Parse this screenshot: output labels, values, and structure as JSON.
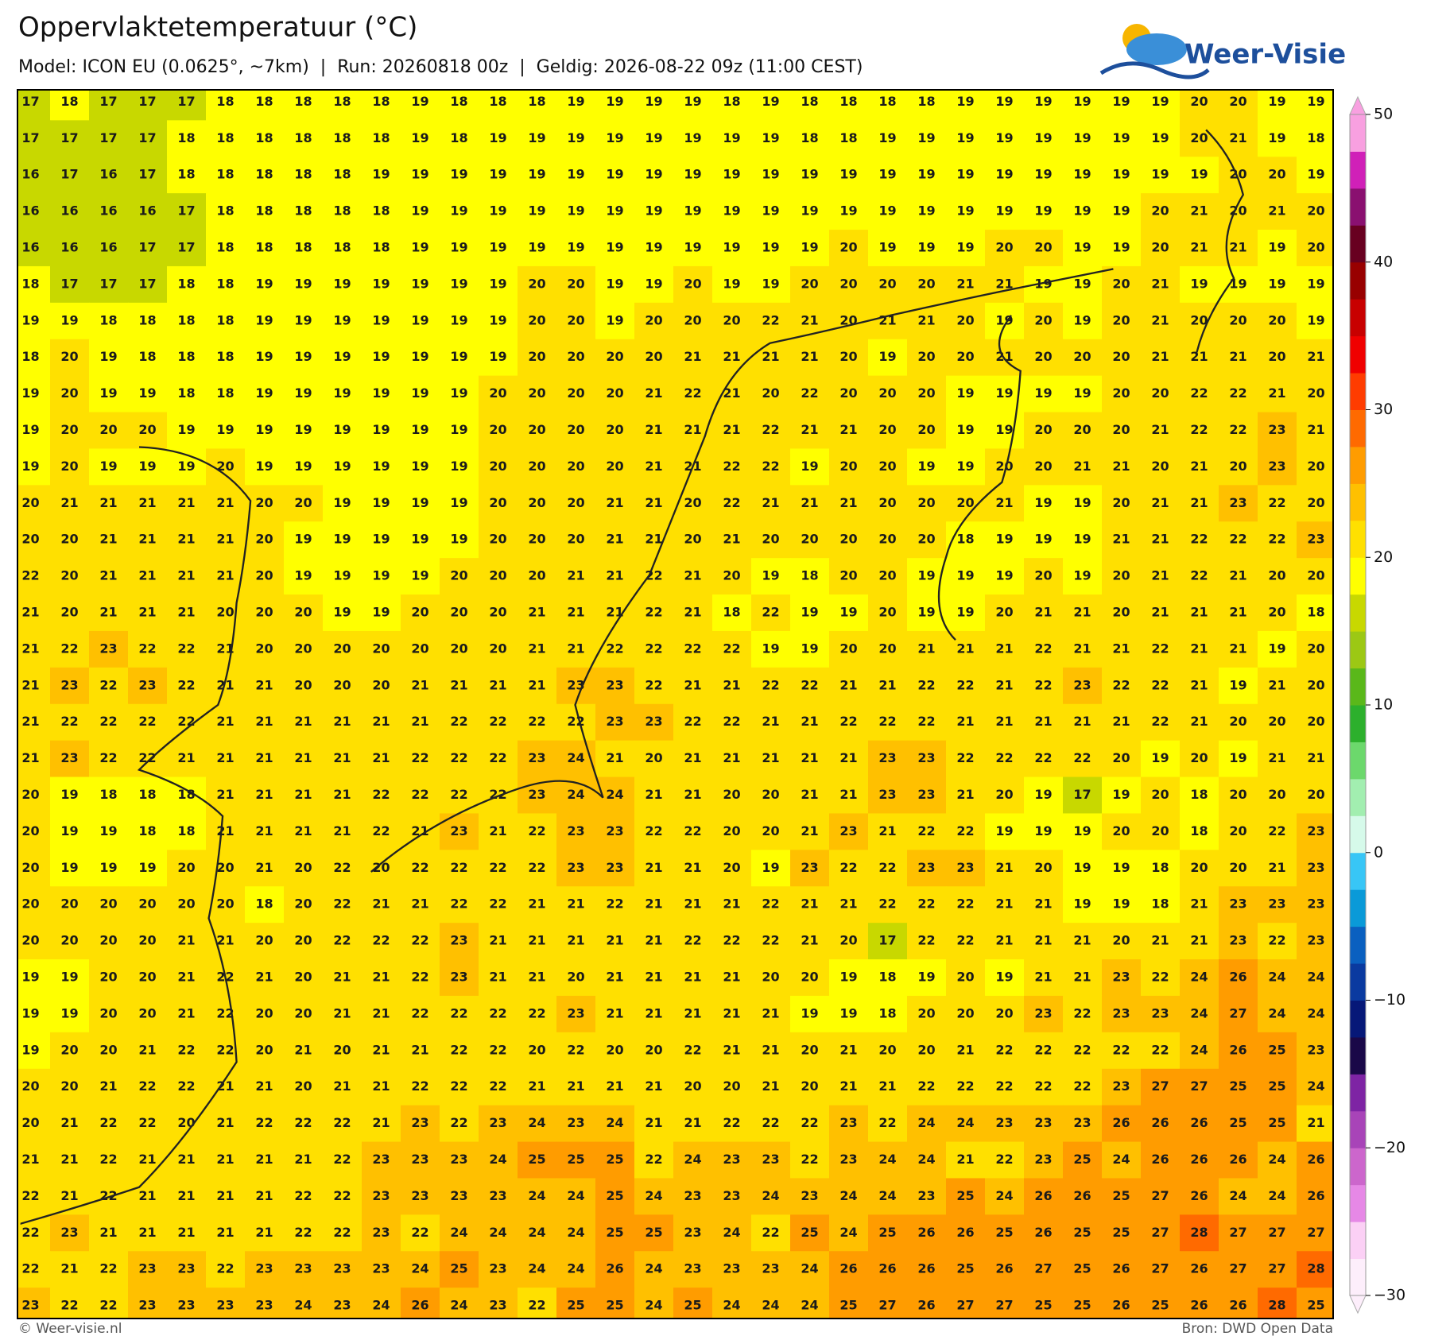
{
  "header": {
    "title": "Oppervlaktetemperatuur (°C)",
    "subtitle": "Model: ICON EU (0.0625°, ~7km)  |  Run: 20260818 00z  |  Geldig: 2026-08-22 09z (11:00 CEST)",
    "logo": "Weer-Visie"
  },
  "map": {
    "values": [
      [
        17,
        18,
        17,
        17,
        17,
        18,
        18,
        18,
        18,
        18,
        19,
        18,
        18,
        18,
        19,
        19,
        19,
        19,
        18,
        19,
        18,
        18,
        18,
        18,
        19,
        19,
        19,
        19,
        19,
        19,
        20,
        20,
        19,
        19
      ],
      [
        17,
        17,
        17,
        17,
        18,
        18,
        18,
        18,
        18,
        18,
        19,
        18,
        19,
        19,
        19,
        19,
        19,
        19,
        19,
        19,
        18,
        18,
        19,
        19,
        19,
        19,
        19,
        19,
        19,
        19,
        20,
        21,
        19,
        18
      ],
      [
        16,
        17,
        16,
        17,
        18,
        18,
        18,
        18,
        18,
        19,
        19,
        19,
        19,
        19,
        19,
        19,
        19,
        19,
        19,
        19,
        19,
        19,
        19,
        19,
        19,
        19,
        19,
        19,
        19,
        19,
        19,
        20,
        20,
        19
      ],
      [
        16,
        16,
        16,
        16,
        17,
        18,
        18,
        18,
        18,
        18,
        19,
        19,
        19,
        19,
        19,
        19,
        19,
        19,
        19,
        19,
        19,
        19,
        19,
        19,
        19,
        19,
        19,
        19,
        19,
        20,
        21,
        20,
        21,
        20
      ],
      [
        16,
        16,
        16,
        17,
        17,
        18,
        18,
        18,
        18,
        18,
        19,
        19,
        19,
        19,
        19,
        19,
        19,
        19,
        19,
        19,
        19,
        20,
        19,
        19,
        19,
        20,
        20,
        19,
        19,
        20,
        21,
        21,
        19,
        20
      ],
      [
        18,
        17,
        17,
        17,
        18,
        18,
        19,
        19,
        19,
        19,
        19,
        19,
        19,
        20,
        20,
        19,
        19,
        20,
        19,
        19,
        20,
        20,
        20,
        20,
        21,
        21,
        19,
        19,
        20,
        21,
        19,
        19,
        19,
        19
      ],
      [
        19,
        19,
        18,
        18,
        18,
        18,
        19,
        19,
        19,
        19,
        19,
        19,
        19,
        20,
        20,
        19,
        20,
        20,
        20,
        22,
        21,
        20,
        21,
        21,
        20,
        19,
        20,
        19,
        20,
        21,
        20,
        20,
        20,
        19
      ],
      [
        18,
        20,
        19,
        18,
        18,
        18,
        19,
        19,
        19,
        19,
        19,
        19,
        19,
        20,
        20,
        20,
        20,
        21,
        21,
        21,
        21,
        20,
        19,
        20,
        20,
        21,
        20,
        20,
        20,
        21,
        21,
        21,
        20,
        21
      ],
      [
        19,
        20,
        19,
        19,
        18,
        18,
        19,
        19,
        19,
        19,
        19,
        19,
        20,
        20,
        20,
        20,
        21,
        22,
        21,
        20,
        22,
        20,
        20,
        20,
        19,
        19,
        19,
        19,
        20,
        20,
        22,
        22,
        21,
        20
      ],
      [
        19,
        20,
        20,
        20,
        19,
        19,
        19,
        19,
        19,
        19,
        19,
        19,
        20,
        20,
        20,
        20,
        21,
        21,
        21,
        22,
        21,
        21,
        20,
        20,
        19,
        19,
        20,
        20,
        20,
        21,
        22,
        22,
        23,
        21
      ],
      [
        19,
        20,
        19,
        19,
        19,
        20,
        19,
        19,
        19,
        19,
        19,
        19,
        20,
        20,
        20,
        20,
        21,
        21,
        22,
        22,
        19,
        20,
        20,
        19,
        19,
        20,
        20,
        21,
        21,
        20,
        21,
        20,
        23,
        20
      ],
      [
        20,
        21,
        21,
        21,
        21,
        21,
        20,
        20,
        19,
        19,
        19,
        19,
        20,
        20,
        20,
        21,
        21,
        20,
        22,
        21,
        21,
        21,
        20,
        20,
        20,
        21,
        19,
        19,
        20,
        21,
        21,
        23,
        22,
        20
      ],
      [
        20,
        20,
        21,
        21,
        21,
        21,
        20,
        19,
        19,
        19,
        19,
        19,
        20,
        20,
        20,
        21,
        21,
        20,
        21,
        20,
        20,
        20,
        20,
        20,
        18,
        19,
        19,
        19,
        21,
        21,
        22,
        22,
        22,
        23
      ],
      [
        22,
        20,
        21,
        21,
        21,
        21,
        20,
        19,
        19,
        19,
        19,
        20,
        20,
        20,
        21,
        21,
        22,
        21,
        20,
        19,
        18,
        20,
        20,
        19,
        19,
        19,
        20,
        19,
        20,
        21,
        22,
        21,
        20,
        20
      ],
      [
        21,
        20,
        21,
        21,
        21,
        20,
        20,
        20,
        19,
        19,
        20,
        20,
        20,
        21,
        21,
        21,
        22,
        21,
        18,
        22,
        19,
        19,
        20,
        19,
        19,
        20,
        21,
        21,
        20,
        21,
        21,
        21,
        20,
        18
      ],
      [
        21,
        22,
        23,
        22,
        22,
        21,
        20,
        20,
        20,
        20,
        20,
        20,
        20,
        21,
        21,
        22,
        22,
        22,
        22,
        19,
        19,
        20,
        20,
        21,
        21,
        21,
        22,
        21,
        21,
        22,
        21,
        21,
        19,
        20
      ],
      [
        21,
        23,
        22,
        23,
        22,
        21,
        21,
        20,
        20,
        20,
        21,
        21,
        21,
        21,
        23,
        23,
        22,
        21,
        21,
        22,
        22,
        21,
        21,
        22,
        22,
        21,
        22,
        23,
        22,
        22,
        21,
        19,
        21,
        20
      ],
      [
        21,
        22,
        22,
        22,
        22,
        21,
        21,
        21,
        21,
        21,
        21,
        22,
        22,
        22,
        22,
        23,
        23,
        22,
        22,
        21,
        21,
        22,
        22,
        22,
        21,
        21,
        21,
        21,
        21,
        22,
        21,
        20,
        20,
        20
      ],
      [
        21,
        23,
        22,
        22,
        21,
        21,
        21,
        21,
        21,
        21,
        22,
        22,
        22,
        23,
        24,
        21,
        20,
        21,
        21,
        21,
        21,
        21,
        23,
        23,
        22,
        22,
        22,
        22,
        20,
        19,
        20,
        19,
        21,
        21
      ],
      [
        20,
        19,
        18,
        18,
        18,
        21,
        21,
        21,
        21,
        22,
        22,
        22,
        22,
        23,
        24,
        24,
        21,
        21,
        20,
        20,
        21,
        21,
        23,
        23,
        21,
        20,
        19,
        17,
        19,
        20,
        18,
        20,
        20,
        20
      ],
      [
        20,
        19,
        19,
        18,
        18,
        21,
        21,
        21,
        21,
        22,
        21,
        23,
        21,
        22,
        23,
        23,
        22,
        22,
        20,
        20,
        21,
        23,
        21,
        22,
        22,
        19,
        19,
        19,
        20,
        20,
        18,
        20,
        22,
        23
      ],
      [
        20,
        19,
        19,
        19,
        20,
        20,
        21,
        20,
        22,
        20,
        22,
        22,
        22,
        22,
        23,
        23,
        21,
        21,
        20,
        19,
        23,
        22,
        22,
        23,
        23,
        21,
        20,
        19,
        19,
        18,
        20,
        20,
        21,
        23
      ],
      [
        20,
        20,
        20,
        20,
        20,
        20,
        18,
        20,
        22,
        21,
        21,
        22,
        22,
        21,
        21,
        22,
        21,
        21,
        21,
        22,
        21,
        21,
        22,
        22,
        22,
        21,
        21,
        19,
        19,
        18,
        21,
        23,
        23,
        23
      ],
      [
        20,
        20,
        20,
        20,
        21,
        21,
        20,
        20,
        22,
        22,
        22,
        23,
        21,
        21,
        21,
        21,
        21,
        22,
        22,
        22,
        21,
        20,
        17,
        22,
        22,
        21,
        21,
        21,
        20,
        21,
        21,
        23,
        22,
        23
      ],
      [
        19,
        19,
        20,
        20,
        21,
        22,
        21,
        20,
        21,
        21,
        22,
        23,
        21,
        21,
        20,
        21,
        21,
        21,
        21,
        20,
        20,
        19,
        18,
        19,
        20,
        19,
        21,
        21,
        23,
        22,
        24,
        26,
        24,
        24
      ],
      [
        19,
        19,
        20,
        20,
        21,
        22,
        20,
        20,
        21,
        21,
        22,
        22,
        22,
        22,
        23,
        21,
        21,
        21,
        21,
        21,
        19,
        19,
        18,
        20,
        20,
        20,
        23,
        22,
        23,
        23,
        24,
        27,
        24,
        24
      ],
      [
        19,
        20,
        20,
        21,
        22,
        22,
        20,
        21,
        20,
        21,
        21,
        22,
        22,
        20,
        22,
        20,
        20,
        22,
        21,
        21,
        20,
        21,
        20,
        20,
        21,
        22,
        22,
        22,
        22,
        22,
        24,
        26,
        25,
        23
      ],
      [
        20,
        20,
        21,
        22,
        22,
        21,
        21,
        20,
        21,
        21,
        22,
        22,
        22,
        21,
        21,
        21,
        21,
        20,
        20,
        21,
        20,
        21,
        21,
        22,
        22,
        22,
        22,
        22,
        23,
        27,
        27,
        25,
        25,
        24
      ],
      [
        20,
        21,
        22,
        22,
        20,
        21,
        22,
        22,
        22,
        21,
        23,
        22,
        23,
        24,
        23,
        24,
        21,
        21,
        22,
        22,
        22,
        23,
        22,
        24,
        24,
        23,
        23,
        23,
        26,
        26,
        26,
        25,
        25,
        21
      ],
      [
        21,
        21,
        22,
        21,
        21,
        21,
        21,
        21,
        22,
        23,
        23,
        23,
        24,
        25,
        25,
        25,
        22,
        24,
        23,
        23,
        22,
        23,
        24,
        24,
        21,
        22,
        23,
        25,
        24,
        26,
        26,
        26,
        24,
        26
      ],
      [
        22,
        21,
        22,
        21,
        21,
        21,
        21,
        22,
        22,
        23,
        23,
        23,
        23,
        24,
        24,
        25,
        24,
        23,
        23,
        24,
        23,
        24,
        24,
        23,
        25,
        24,
        26,
        26,
        25,
        27,
        26,
        24,
        24,
        26
      ],
      [
        22,
        23,
        21,
        21,
        21,
        21,
        21,
        22,
        22,
        23,
        22,
        24,
        24,
        24,
        24,
        25,
        25,
        23,
        24,
        22,
        25,
        24,
        25,
        26,
        26,
        25,
        26,
        25,
        25,
        27,
        28,
        27,
        27,
        27
      ],
      [
        22,
        21,
        22,
        23,
        23,
        22,
        23,
        23,
        23,
        23,
        24,
        25,
        23,
        24,
        24,
        26,
        24,
        23,
        23,
        23,
        24,
        26,
        26,
        26,
        25,
        26,
        27,
        25,
        26,
        27,
        26,
        27,
        27,
        28
      ],
      [
        23,
        22,
        22,
        23,
        23,
        23,
        23,
        24,
        23,
        24,
        26,
        24,
        23,
        22,
        25,
        25,
        24,
        25,
        24,
        24,
        24,
        25,
        27,
        26,
        27,
        27,
        25,
        25,
        26,
        25,
        26,
        26,
        28,
        25
      ]
    ],
    "colorbar": {
      "lim": [
        -30,
        50
      ],
      "ticks": [
        {
          "value": -30,
          "label": "−30"
        },
        {
          "value": -20,
          "label": "−20"
        },
        {
          "value": -10,
          "label": "−10"
        },
        0,
        10,
        20,
        30,
        40,
        50
      ],
      "colors": [
        "#fdeefb",
        "#fbd0f5",
        "#e688e6",
        "#cc66cc",
        "#a844b8",
        "#7e24a4",
        "#1a0848",
        "#061878",
        "#0a3aa0",
        "#0a60c0",
        "#0a9ad8",
        "#38c6f6",
        "#d6faea",
        "#a2eeb0",
        "#6cd86c",
        "#2cb02c",
        "#5ab81a",
        "#9cc814",
        "#c8d800",
        "#ffff00",
        "#ffe000",
        "#ffc000",
        "#ff9c00",
        "#ff6a00",
        "#ff3c00",
        "#f00000",
        "#c80000",
        "#980000",
        "#680020",
        "#8a1070",
        "#d020b8",
        "#f8a0e0"
      ]
    }
  },
  "footer": {
    "left": "© Weer-visie.nl",
    "right": "Bron: DWD Open Data"
  }
}
